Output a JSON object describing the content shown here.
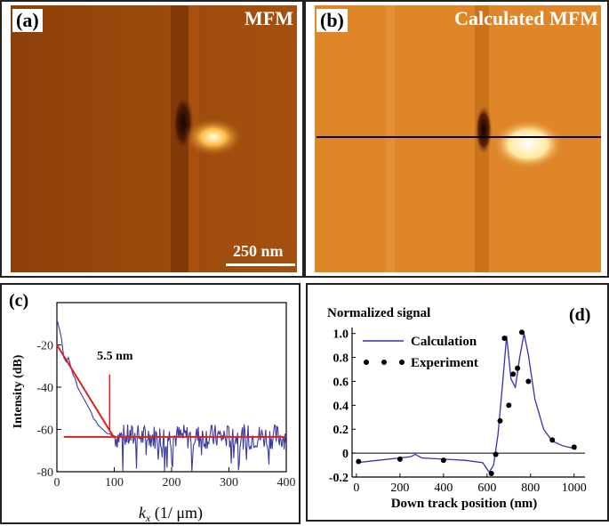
{
  "panel_a": {
    "label": "(a)",
    "title": "MFM",
    "scale_bar": "250 nm"
  },
  "panel_b": {
    "label": "(b)",
    "title": "Calculated MFM"
  },
  "colors": {
    "bg_dark": "#8a3a06",
    "bg_mid": "#b8560c",
    "bg_light": "#e2892c",
    "spot": "#ffffff",
    "red": "#e0201c",
    "blue": "#3a3aa0"
  },
  "chart_data": [
    {
      "panel": "(c)",
      "type": "line",
      "ylabel": "Intensity (dB)",
      "xlabel_k": "k",
      "xlabel_sub": "x",
      "xlabel_units": " (1/ μm)",
      "xlim": [
        0,
        400
      ],
      "ylim": [
        -80,
        0
      ],
      "xticks": [
        0,
        100,
        200,
        300,
        400
      ],
      "yticks": [
        -20,
        -40,
        -60,
        -80
      ],
      "annotation": "5.5 nm",
      "noise_floor_db": -63.5,
      "fit_line": {
        "x": [
          0,
          100
        ],
        "y": [
          -20,
          -64
        ]
      },
      "series": [
        {
          "name": "spectrum",
          "x": [
            0,
            4,
            8,
            12,
            16,
            20,
            24,
            28,
            32,
            36,
            40,
            44,
            48,
            52,
            56,
            60,
            64,
            68,
            72,
            76,
            80,
            84,
            88,
            92,
            96,
            100
          ],
          "y": [
            -8,
            -12,
            -17,
            -26,
            -28,
            -26,
            -30,
            -34,
            -36,
            -40,
            -42,
            -44,
            -46,
            -48,
            -50,
            -52,
            -55,
            -56,
            -58,
            -59,
            -60,
            -61,
            -62,
            -62,
            -63,
            -63
          ]
        }
      ]
    },
    {
      "panel": "(d)",
      "type": "line",
      "title": "Normalized signal",
      "xlabel": "Down track position (nm)",
      "xlim": [
        -20,
        1050
      ],
      "ylim": [
        -0.2,
        1.05
      ],
      "xticks": [
        0,
        200,
        400,
        600,
        800,
        1000
      ],
      "yticks": [
        1.0,
        0.8,
        0.6,
        0.4,
        0.2,
        0,
        -0.2
      ],
      "ytick_labels": [
        "1.0",
        "0.8",
        "0.6",
        "0.4",
        "0.2",
        "0",
        "-0.2"
      ],
      "legend": [
        "Calculation",
        "Experiment"
      ],
      "series": [
        {
          "name": "Calculation",
          "x": [
            0,
            100,
            200,
            250,
            270,
            300,
            400,
            500,
            580,
            610,
            630,
            650,
            670,
            690,
            710,
            730,
            750,
            770,
            790,
            820,
            860,
            900,
            950,
            1000,
            1010
          ],
          "y": [
            -0.08,
            -0.06,
            -0.04,
            -0.03,
            -0.01,
            -0.04,
            -0.05,
            -0.06,
            -0.08,
            -0.16,
            -0.1,
            0.15,
            0.55,
            0.98,
            0.62,
            0.55,
            0.8,
            1.0,
            0.82,
            0.45,
            0.2,
            0.1,
            0.06,
            0.04,
            0.03
          ]
        },
        {
          "name": "Experiment",
          "x": [
            10,
            200,
            400,
            620,
            640,
            660,
            680,
            700,
            720,
            740,
            760,
            790,
            900,
            1000
          ],
          "y": [
            -0.07,
            -0.05,
            -0.06,
            -0.17,
            -0.01,
            0.27,
            0.96,
            0.4,
            0.66,
            0.71,
            1.01,
            0.6,
            0.11,
            0.05
          ]
        }
      ]
    }
  ]
}
